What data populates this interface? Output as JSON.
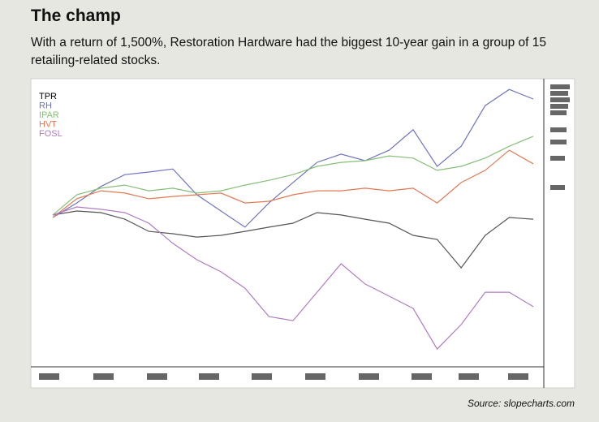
{
  "chart_data": {
    "type": "line",
    "title": "The champ",
    "subtitle": "With a return of 1,500%, Restoration Hardware had the biggest 10-year gain in a group of 15 retailing-related stocks.",
    "source": "Source: slopecharts.com",
    "ylim": [
      0,
      100
    ],
    "legend": "top-left",
    "series": [
      {
        "name": "TPR",
        "color": "#555555",
        "values": [
          52.9,
          54.3,
          53.7,
          51.4,
          47.1,
          46.3,
          45.1,
          45.7,
          47.1,
          48.6,
          50,
          53.7,
          52.9,
          51.4,
          50,
          45.7,
          44.3,
          34.3,
          45.7,
          52,
          51.4
        ]
      },
      {
        "name": "RH",
        "color": "#6f74bf",
        "values": [
          52,
          57.1,
          62.9,
          67.1,
          68,
          69.1,
          60,
          54.3,
          48.6,
          57.1,
          64.3,
          71.4,
          74.3,
          72,
          75.7,
          82.9,
          70,
          77.1,
          91.4,
          97.1,
          93.7
        ]
      },
      {
        "name": "IPAR",
        "color": "#86bf78",
        "values": [
          52.9,
          60,
          62.3,
          63.4,
          61.4,
          62.3,
          60.6,
          61.4,
          63.4,
          65.1,
          67.1,
          70,
          71.4,
          72,
          73.7,
          72.9,
          68.6,
          70,
          72.9,
          77.1,
          80.6
        ]
      },
      {
        "name": "HVT",
        "color": "#e07a55",
        "values": [
          52,
          58.6,
          61.4,
          60.6,
          58.6,
          59.4,
          60,
          60.6,
          57.1,
          57.7,
          60,
          61.4,
          61.4,
          62.3,
          61.4,
          62.3,
          57.1,
          64.3,
          68.6,
          75.7,
          70.9
        ]
      },
      {
        "name": "FOSL",
        "color": "#b07cc4",
        "values": [
          52.9,
          55.7,
          54.9,
          53.7,
          50,
          42.9,
          37.1,
          32.9,
          27.1,
          17.1,
          15.7,
          25.7,
          35.7,
          28.6,
          24.3,
          20,
          5.7,
          14.3,
          25.7,
          25.7,
          20.6
        ]
      }
    ]
  }
}
